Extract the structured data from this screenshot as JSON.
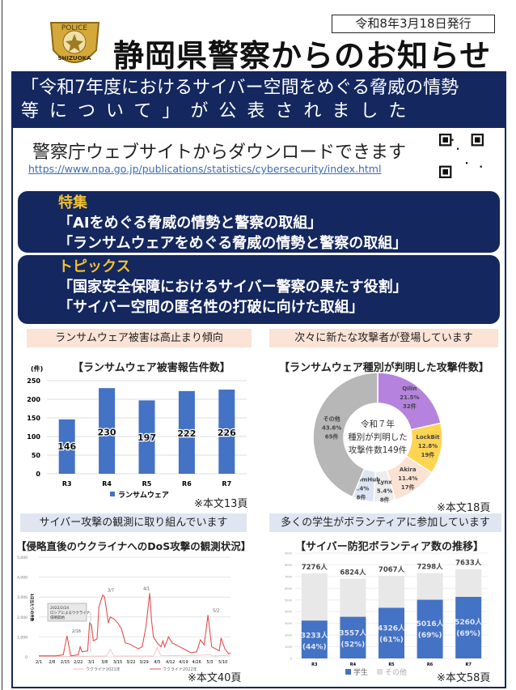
{
  "header": {
    "date": "令和8年3月18日発行",
    "title": "静岡県警察からのお知らせ",
    "logo_text": [
      "POLICE",
      "SHIZUOKA"
    ]
  },
  "banner": {
    "line1": "「令和7年度におけるサイバー空間をめぐる脅威の情勢",
    "line2": "等について」が公表されました"
  },
  "download": {
    "text": "警察庁ウェブサイトからダウンロードできます",
    "url": "https://www.npa.go.jp/publications/statistics/cybersecurity/index.html",
    "qr_icon": "qr-code"
  },
  "features": {
    "heading": "特集",
    "items": [
      "「AIをめぐる脅威の情勢と警察の取組」",
      "「ランサムウェアをめぐる脅威の情勢と警察の取組」"
    ]
  },
  "topics": {
    "heading": "トピックス",
    "items": [
      "「国家安全保障におけるサイバー警察の果たす役割」",
      "「サイバー空間の匿名性の打破に向けた取組」"
    ]
  },
  "panels": {
    "ransom": {
      "header": "ランサムウェア被害は高止まり傾向",
      "note": "※本文13頁"
    },
    "types": {
      "header": "次々に新たな攻撃者が登場しています",
      "note": "※本文18頁"
    },
    "dos": {
      "header": "サイバー攻撃の観測に取り組んでいます",
      "note": "※本文40頁"
    },
    "volunteer": {
      "header": "多くの学生がボランティアに参加しています",
      "note": "※本文58頁"
    }
  },
  "chart_data": [
    {
      "type": "bar",
      "title": "【ランサムウェア被害報告件数】",
      "ylabel": "(件)",
      "categories": [
        "R3",
        "R4",
        "R5",
        "R6",
        "R7"
      ],
      "series": [
        {
          "name": "ランサムウェア",
          "values": [
            146,
            230,
            197,
            222,
            226
          ]
        }
      ],
      "ylim": [
        0,
        250
      ],
      "yticks": [
        0,
        50,
        100,
        150,
        200,
        250
      ],
      "color": "#4472c4",
      "grid": true,
      "legend": "bottom"
    },
    {
      "type": "pie",
      "title": "【ランサムウェア種別が判明した攻撃件数】",
      "center_text": [
        "令和７年",
        "種別が判明した",
        "攻撃件数149件"
      ],
      "slices": [
        {
          "name": "Qilin",
          "percent": "21.5%",
          "count": "32件",
          "value": 32,
          "color": "#b583dd"
        },
        {
          "name": "LockBit",
          "percent": "12.8%",
          "count": "19件",
          "value": 19,
          "color": "#ffd452"
        },
        {
          "name": "Akira",
          "percent": "11.4%",
          "count": "17件",
          "value": 17,
          "color": "#fbe2d3"
        },
        {
          "name": "Lynx",
          "percent": "5.4%",
          "count": "8件",
          "value": 8,
          "color": "#ededed"
        },
        {
          "name": "RansomHub",
          "percent": "5.4%",
          "count": "8件",
          "value": 8,
          "color": "#dbe5f3"
        },
        {
          "name": "その他",
          "percent": "43.6%",
          "count": "65件",
          "value": 65,
          "color": "#b7b7b7"
        }
      ]
    },
    {
      "type": "line",
      "title": "【侵略直後のウクライナへのDoS攻撃の観測状況】",
      "ylabel": "1日当たりの件数",
      "ylim": [
        0,
        5000
      ],
      "yticks": [
        "0",
        "1,000",
        "2,000",
        "3,000",
        "4,000",
        "5,000"
      ],
      "xticks": [
        "2/1",
        "2/8",
        "2/15",
        "2/22",
        "3/1",
        "3/8",
        "3/15",
        "3/22",
        "3/29",
        "4/5",
        "4/12",
        "4/19",
        "4/26",
        "5/3",
        "5/10"
      ],
      "grid": true,
      "legend": "bottom",
      "annotation": [
        "2022/2/24",
        "ロシアによるウクライナ",
        "侵略開始"
      ],
      "peak_labels": [
        {
          "x": "2/16",
          "y": 1050
        },
        {
          "x": "3/7",
          "y": 3100
        },
        {
          "x": "4/1",
          "y": 3200
        },
        {
          "x": "5/2",
          "y": 2100
        }
      ],
      "series": [
        {
          "name": "ウクライナ2021年",
          "color": "#f2b8b8",
          "points": [
            [
              "2/1",
              20
            ],
            [
              "2/20",
              30
            ],
            [
              "3/9",
              40
            ],
            [
              "3/11",
              380
            ],
            [
              "3/13",
              40
            ],
            [
              "4/3",
              40
            ],
            [
              "4/5",
              450
            ],
            [
              "4/7",
              60
            ],
            [
              "4/20",
              50
            ],
            [
              "5/3",
              100
            ],
            [
              "5/5",
              40
            ],
            [
              "5/14",
              80
            ]
          ]
        },
        {
          "name": "ウクライナ2022年",
          "color": "#e05050",
          "points": [
            [
              "2/1",
              50
            ],
            [
              "2/10",
              50
            ],
            [
              "2/14",
              100
            ],
            [
              "2/16",
              1050
            ],
            [
              "2/18",
              50
            ],
            [
              "2/22",
              100
            ],
            [
              "2/23",
              500
            ],
            [
              "2/24",
              250
            ],
            [
              "2/27",
              300
            ],
            [
              "2/28",
              1700
            ],
            [
              "3/1",
              1600
            ],
            [
              "3/2",
              800
            ],
            [
              "3/4",
              900
            ],
            [
              "3/5",
              2500
            ],
            [
              "3/7",
              3100
            ],
            [
              "3/8",
              3000
            ],
            [
              "3/10",
              1700
            ],
            [
              "3/11",
              2000
            ],
            [
              "3/13",
              1900
            ],
            [
              "3/15",
              1700
            ],
            [
              "3/17",
              1400
            ],
            [
              "3/19",
              700
            ],
            [
              "3/21",
              650
            ],
            [
              "3/24",
              500
            ],
            [
              "3/26",
              400
            ],
            [
              "3/28",
              500
            ],
            [
              "3/30",
              1500
            ],
            [
              "4/1",
              3200
            ],
            [
              "4/2",
              1800
            ],
            [
              "4/3",
              1000
            ],
            [
              "4/5",
              700
            ],
            [
              "4/7",
              500
            ],
            [
              "4/8",
              800
            ],
            [
              "4/9",
              500
            ],
            [
              "4/11",
              1000
            ],
            [
              "4/13",
              700
            ],
            [
              "4/15",
              600
            ],
            [
              "4/17",
              500
            ],
            [
              "4/19",
              400
            ],
            [
              "4/21",
              300
            ],
            [
              "4/23",
              200
            ],
            [
              "4/26",
              250
            ],
            [
              "4/28",
              850
            ],
            [
              "4/30",
              600
            ],
            [
              "5/2",
              2100
            ],
            [
              "5/4",
              500
            ],
            [
              "5/6",
              400
            ],
            [
              "5/8",
              300
            ],
            [
              "5/9",
              950
            ],
            [
              "5/11",
              400
            ],
            [
              "5/13",
              150
            ],
            [
              "5/14",
              200
            ]
          ]
        }
      ]
    },
    {
      "type": "bar",
      "stacked": true,
      "title": "【サイバー防犯ボランティア数の推移】",
      "categories": [
        "R3",
        "R4",
        "R5",
        "R6",
        "R7"
      ],
      "ylim": [
        0,
        9000
      ],
      "yticks": [
        0,
        1000,
        2000,
        3000,
        4000,
        5000,
        6000,
        7000,
        8000,
        9000
      ],
      "totals": [
        "7276人",
        "6824人",
        "7067人",
        "7298人",
        "7633人"
      ],
      "total_values": [
        7276,
        6824,
        7067,
        7298,
        7633
      ],
      "series": [
        {
          "name": "学生",
          "color": "#4472c4",
          "values": [
            3233,
            3557,
            4326,
            5016,
            5260
          ],
          "labels": [
            "3233人",
            "3557人",
            "4326人",
            "5016人",
            "5260人"
          ],
          "shares": [
            "(44%)",
            "(52%)",
            "(61%)",
            "(69%)",
            "(69%)"
          ]
        },
        {
          "name": "その他",
          "color": "#e8e8e8"
        }
      ],
      "legend": "bottom"
    }
  ]
}
